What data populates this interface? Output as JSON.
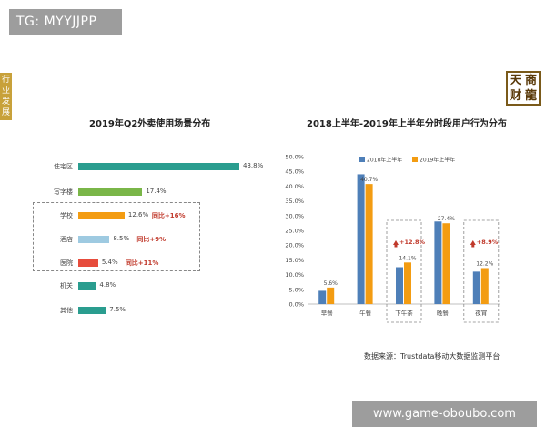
{
  "overlay": {
    "tg_label": "TG: MYYJJPP",
    "watermark": "www.game-oboubo.com"
  },
  "side_tab": {
    "label": "行业发展"
  },
  "logo": {
    "chars": [
      "天",
      "商",
      "财",
      "龍"
    ]
  },
  "source": "数据来源：Trustdata移动大数据监测平台",
  "colors": {
    "teal": "#2a9d8f",
    "green": "#7ab648",
    "orange": "#f39c12",
    "lightblue": "#9ecae1",
    "red": "#e74c3c",
    "blue": "#4e7fb8",
    "yoy": "#c0392b"
  },
  "chart_data": [
    {
      "type": "bar",
      "orientation": "horizontal",
      "title": "2019年Q2外卖使用场景分布",
      "categories": [
        "住宅区",
        "写字楼",
        "学校",
        "酒店",
        "医院",
        "机关",
        "其他"
      ],
      "values": [
        43.8,
        17.4,
        12.6,
        8.5,
        5.4,
        4.8,
        7.5
      ],
      "value_labels": [
        "43.8%",
        "17.4%",
        "12.6%",
        "8.5%",
        "5.4%",
        "4.8%",
        "7.5%"
      ],
      "bar_colors": [
        "#2a9d8f",
        "#7ab648",
        "#f39c12",
        "#9ecae1",
        "#e74c3c",
        "#2a9d8f",
        "#2a9d8f"
      ],
      "annotations": [
        {
          "category": "学校",
          "text": "同比+16%"
        },
        {
          "category": "酒店",
          "text": "同比+9%"
        },
        {
          "category": "医院",
          "text": "同比+11%"
        }
      ],
      "xlim": [
        0,
        45
      ]
    },
    {
      "type": "bar",
      "title": "2018上半年-2019年上半年分时段用户行为分布",
      "categories": [
        "早餐",
        "午餐",
        "下午茶",
        "晚餐",
        "夜宵"
      ],
      "series": [
        {
          "name": "2018年上半年",
          "color": "#4e7fb8",
          "values": [
            4.5,
            44.0,
            12.5,
            28.0,
            11.0
          ]
        },
        {
          "name": "2019年上半年",
          "color": "#f39c12",
          "values": [
            5.6,
            40.7,
            14.1,
            27.4,
            12.2
          ]
        }
      ],
      "value_labels_2019": [
        "5.6%",
        "40.7%",
        "14.1%",
        "27.4%",
        "12.2%"
      ],
      "annotations": [
        {
          "category": "下午茶",
          "text": "+12.8%"
        },
        {
          "category": "夜宵",
          "text": "+8.9%"
        }
      ],
      "yticks": [
        "0.0%",
        "5.0%",
        "10.0%",
        "15.0%",
        "20.0%",
        "25.0%",
        "30.0%",
        "35.0%",
        "40.0%",
        "45.0%",
        "50.0%"
      ],
      "ylim": [
        0,
        50
      ],
      "legend": "top"
    }
  ]
}
